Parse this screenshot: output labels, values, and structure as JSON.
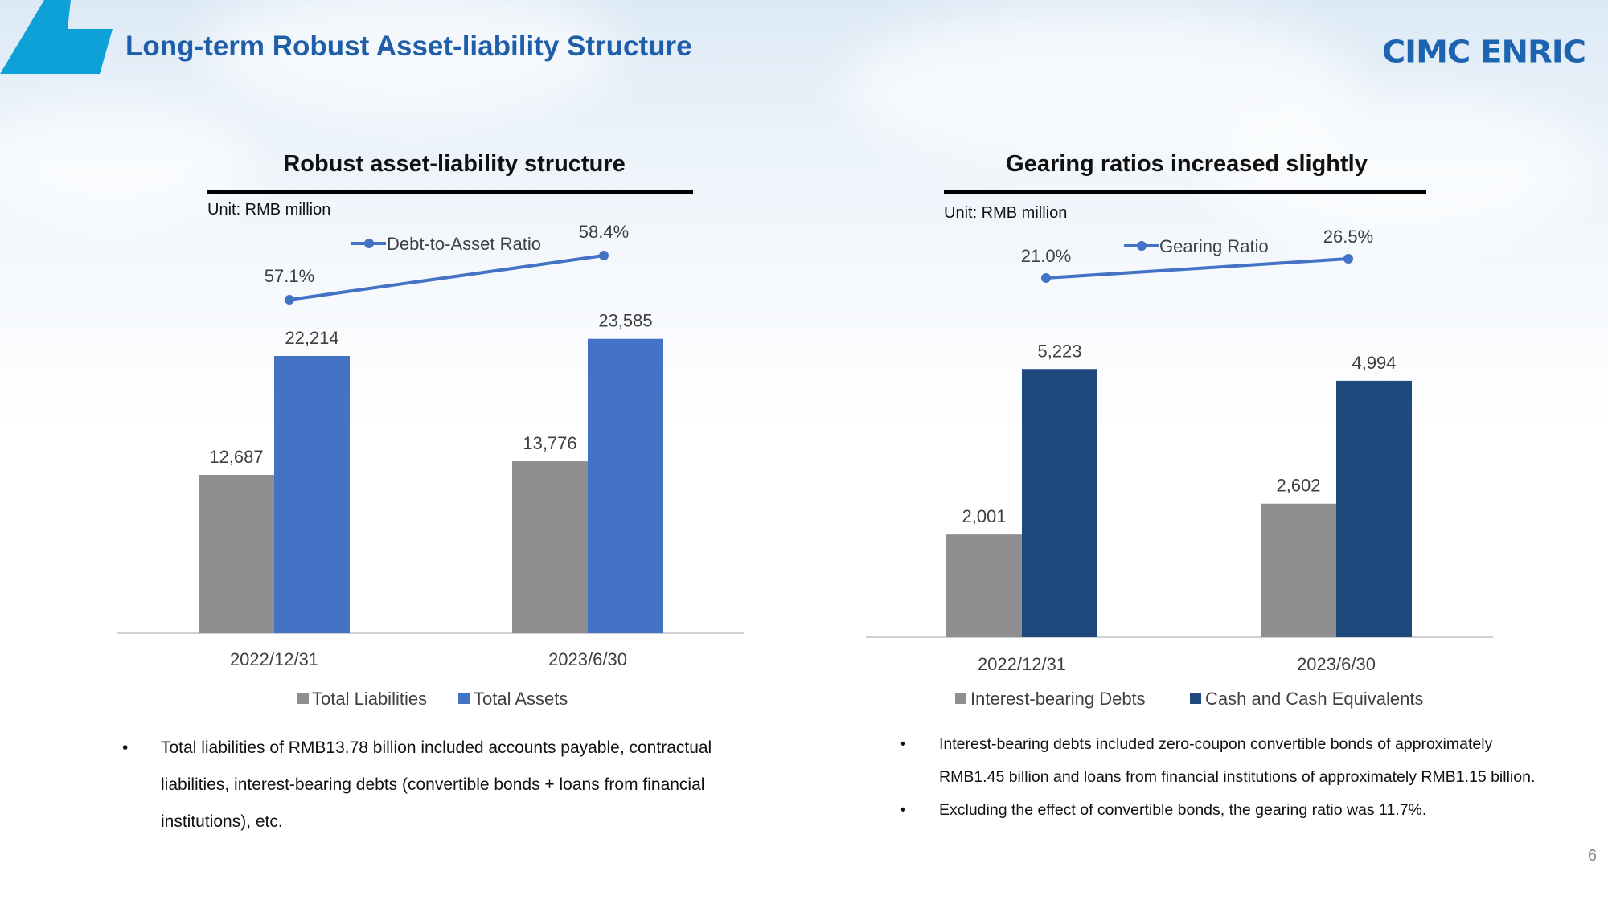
{
  "header": {
    "title": "Long-term Robust Asset-liability Structure",
    "logo_text": "CIMC ENRIC"
  },
  "colors": {
    "accent": "#0ea1d8",
    "title": "#1f5ea8",
    "grey_bar": "#8f8f8f",
    "blue_bar": "#4472c4",
    "navy_bar": "#1f497d",
    "line": "#4472c4"
  },
  "page_number": "6",
  "left_panel": {
    "heading": "Robust asset-liability structure",
    "unit": "Unit: RMB million",
    "notes": [
      "Total liabilities of RMB13.78 billion included accounts payable, contractual liabilities, interest-bearing debts (convertible bonds + loans from financial institutions), etc."
    ]
  },
  "right_panel": {
    "heading": "Gearing ratios increased slightly",
    "unit": "Unit: RMB million",
    "notes": [
      "Interest-bearing debts included zero-coupon convertible bonds of approximately RMB1.45 billion and loans from financial institutions of approximately RMB1.15 billion.",
      "Excluding the effect of convertible bonds, the gearing ratio was 11.7%."
    ]
  },
  "chart_data": [
    {
      "type": "bar",
      "title": "Robust asset-liability structure",
      "categories": [
        "2022/12/31",
        "2023/6/30"
      ],
      "series": [
        {
          "name": "Total Liabilities",
          "values": [
            12687,
            13776
          ],
          "labels": [
            "12,687",
            "13,776"
          ],
          "color": "#8f8f8f"
        },
        {
          "name": "Total Assets",
          "values": [
            22214,
            23585
          ],
          "labels": [
            "22,214",
            "23,585"
          ],
          "color": "#4472c4"
        }
      ],
      "line_series": {
        "name": "Debt-to-Asset Ratio",
        "values": [
          57.1,
          58.4
        ],
        "labels": [
          "57.1%",
          "58.4%"
        ],
        "color": "#4472c4"
      },
      "legend_position": "bottom"
    },
    {
      "type": "bar",
      "title": "Gearing ratios increased slightly",
      "categories": [
        "2022/12/31",
        "2023/6/30"
      ],
      "series": [
        {
          "name": "Interest-bearing Debts",
          "values": [
            2001,
            2602
          ],
          "labels": [
            "2,001",
            "2,602"
          ],
          "color": "#8f8f8f"
        },
        {
          "name": "Cash and Cash Equivalents",
          "values": [
            5223,
            4994
          ],
          "labels": [
            "5,223",
            "4,994"
          ],
          "color": "#1f497d"
        }
      ],
      "line_series": {
        "name": "Gearing Ratio",
        "values": [
          21.0,
          26.5
        ],
        "labels": [
          "21.0%",
          "26.5%"
        ],
        "color": "#4472c4"
      },
      "legend_position": "bottom"
    }
  ]
}
